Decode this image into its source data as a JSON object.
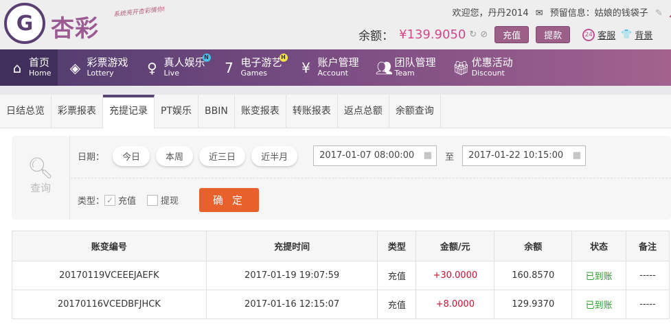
{
  "header": {
    "logo_text": "杏彩",
    "slogan": "系统亮开杏彩情你!",
    "welcome": "欢迎您，丹丹2014",
    "reserve_info": "预留信息：姑娘的钱袋子",
    "logout": "退出",
    "balance_label": "余额：",
    "balance": "¥139.9050",
    "deposit": "充值",
    "withdraw": "提款",
    "service": "客服",
    "background": "背景"
  },
  "nav": [
    {
      "cn": "首页",
      "en": "Home",
      "icon": "home-icon"
    },
    {
      "cn": "彩票游戏",
      "en": "Lottery",
      "icon": "ticket-icon"
    },
    {
      "cn": "真人娱乐",
      "en": "Live",
      "icon": "woman-icon",
      "badge": "N"
    },
    {
      "cn": "电子游艺",
      "en": "Games",
      "icon": "seven-icon",
      "badge": "H"
    },
    {
      "cn": "账户管理",
      "en": "Account",
      "icon": "yen-icon"
    },
    {
      "cn": "团队管理",
      "en": "Team",
      "icon": "people-icon"
    },
    {
      "cn": "优惠活动",
      "en": "Discount",
      "icon": "gift-icon"
    }
  ],
  "tabs": [
    "日结总览",
    "彩票报表",
    "充提记录",
    "PT娱乐",
    "BBIN",
    "账变报表",
    "转账报表",
    "返点总额",
    "余额查询"
  ],
  "search": {
    "label": "查询",
    "date_label": "日期：",
    "quick": [
      "今日",
      "本周",
      "近三日",
      "近半月"
    ],
    "start": "2017-01-07 08:00:00",
    "to": "至",
    "end": "2017-01-22 10:15:00",
    "type_label": "类型：",
    "types": [
      {
        "label": "充值",
        "checked": true
      },
      {
        "label": "提现",
        "checked": false
      }
    ],
    "confirm": "确 定"
  },
  "table": {
    "headers": [
      "账变编号",
      "充提时间",
      "类型",
      "金额/元",
      "余额",
      "状态",
      "备注"
    ],
    "rows": [
      [
        "20170119VCEEEJAEFK",
        "2017-01-19 19:07:59",
        "充值",
        "+30.0000",
        "160.8570",
        "已到账",
        "-----"
      ],
      [
        "20170116VCEDBFJHCK",
        "2017-01-16 12:15:07",
        "充值",
        "+8.0000",
        "129.9370",
        "已到账",
        "-----"
      ]
    ]
  }
}
